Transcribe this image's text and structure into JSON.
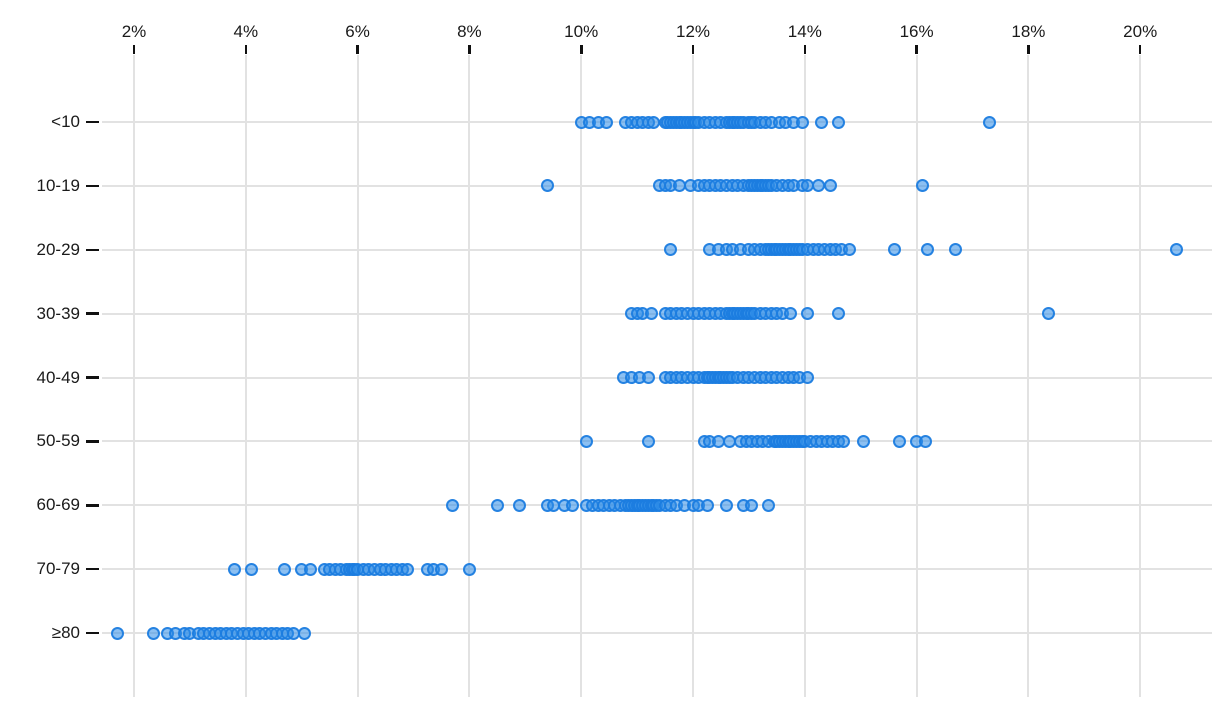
{
  "chart_data": {
    "type": "scatter",
    "variant": "horizontal-strip-dot-plot",
    "title": "",
    "legend": "none",
    "x_axis": {
      "position": "top",
      "unit": "%",
      "min": 2,
      "max": 20,
      "tick_step": 2,
      "tick_values": [
        2,
        4,
        6,
        8,
        10,
        12,
        14,
        16,
        18,
        20
      ],
      "tick_labels": [
        "2%",
        "4%",
        "6%",
        "8%",
        "10%",
        "12%",
        "14%",
        "16%",
        "18%",
        "20%"
      ],
      "grid": true
    },
    "y_axis": {
      "categories": [
        "<10",
        "10-19",
        "20-29",
        "30-39",
        "40-49",
        "50-59",
        "60-69",
        "70-79",
        "≥80"
      ],
      "grid": true
    },
    "groups": [
      {
        "label": "<10",
        "values": [
          10.0,
          10.15,
          10.3,
          10.45,
          10.8,
          10.9,
          11.0,
          11.1,
          11.2,
          11.3,
          11.5,
          11.55,
          11.6,
          11.65,
          11.7,
          11.75,
          11.8,
          11.85,
          11.9,
          11.95,
          12.0,
          12.05,
          12.1,
          12.2,
          12.3,
          12.4,
          12.5,
          12.6,
          12.65,
          12.7,
          12.75,
          12.8,
          12.85,
          12.9,
          13.0,
          13.05,
          13.1,
          13.2,
          13.3,
          13.4,
          13.55,
          13.65,
          13.8,
          13.95,
          14.3,
          14.6,
          17.3
        ]
      },
      {
        "label": "10-19",
        "values": [
          9.4,
          11.4,
          11.5,
          11.6,
          11.75,
          11.95,
          12.1,
          12.2,
          12.3,
          12.4,
          12.5,
          12.6,
          12.7,
          12.8,
          12.9,
          13.0,
          13.05,
          13.1,
          13.15,
          13.2,
          13.25,
          13.3,
          13.35,
          13.4,
          13.5,
          13.6,
          13.7,
          13.8,
          13.95,
          14.05,
          14.25,
          14.45,
          16.1
        ]
      },
      {
        "label": "20-29",
        "values": [
          11.6,
          12.3,
          12.45,
          12.6,
          12.7,
          12.85,
          13.0,
          13.1,
          13.2,
          13.3,
          13.35,
          13.4,
          13.45,
          13.5,
          13.55,
          13.6,
          13.65,
          13.7,
          13.75,
          13.8,
          13.85,
          13.9,
          13.95,
          14.05,
          14.15,
          14.25,
          14.35,
          14.45,
          14.55,
          14.65,
          14.8,
          15.6,
          16.2,
          16.7,
          20.65
        ]
      },
      {
        "label": "30-39",
        "values": [
          10.9,
          11.0,
          11.1,
          11.25,
          11.5,
          11.6,
          11.7,
          11.8,
          11.9,
          12.0,
          12.1,
          12.2,
          12.3,
          12.4,
          12.5,
          12.6,
          12.65,
          12.7,
          12.75,
          12.8,
          12.85,
          12.9,
          12.95,
          13.0,
          13.05,
          13.1,
          13.2,
          13.3,
          13.4,
          13.5,
          13.6,
          13.75,
          14.05,
          14.6,
          18.35
        ]
      },
      {
        "label": "40-49",
        "values": [
          10.75,
          10.9,
          11.05,
          11.2,
          11.5,
          11.6,
          11.7,
          11.8,
          11.9,
          12.0,
          12.1,
          12.2,
          12.25,
          12.3,
          12.35,
          12.4,
          12.45,
          12.5,
          12.55,
          12.6,
          12.65,
          12.7,
          12.8,
          12.9,
          13.0,
          13.1,
          13.2,
          13.3,
          13.4,
          13.5,
          13.6,
          13.7,
          13.8,
          13.9,
          14.05
        ]
      },
      {
        "label": "50-59",
        "values": [
          10.1,
          11.2,
          12.2,
          12.3,
          12.45,
          12.65,
          12.85,
          12.95,
          13.05,
          13.15,
          13.25,
          13.35,
          13.45,
          13.5,
          13.55,
          13.6,
          13.65,
          13.7,
          13.75,
          13.8,
          13.85,
          13.9,
          13.95,
          14.0,
          14.1,
          14.2,
          14.3,
          14.4,
          14.5,
          14.6,
          14.7,
          15.05,
          15.7,
          16.0,
          16.15
        ]
      },
      {
        "label": "60-69",
        "values": [
          7.7,
          8.5,
          8.9,
          9.4,
          9.5,
          9.7,
          9.85,
          10.1,
          10.2,
          10.3,
          10.4,
          10.5,
          10.6,
          10.7,
          10.8,
          10.85,
          10.9,
          10.95,
          11.0,
          11.05,
          11.1,
          11.15,
          11.2,
          11.25,
          11.3,
          11.35,
          11.4,
          11.5,
          11.6,
          11.7,
          11.85,
          12.0,
          12.1,
          12.25,
          12.6,
          12.9,
          13.05,
          13.35
        ]
      },
      {
        "label": "70-79",
        "values": [
          3.8,
          4.1,
          4.7,
          5.0,
          5.15,
          5.4,
          5.5,
          5.6,
          5.7,
          5.8,
          5.85,
          5.9,
          5.95,
          6.0,
          6.1,
          6.2,
          6.3,
          6.4,
          6.5,
          6.6,
          6.7,
          6.8,
          6.9,
          7.25,
          7.35,
          7.5,
          8.0
        ]
      },
      {
        "label": "≥80",
        "values": [
          1.7,
          2.35,
          2.6,
          2.75,
          2.9,
          3.0,
          3.15,
          3.25,
          3.35,
          3.45,
          3.55,
          3.65,
          3.75,
          3.85,
          3.95,
          4.05,
          4.15,
          4.25,
          4.35,
          4.45,
          4.55,
          4.65,
          4.75,
          4.85,
          5.05
        ]
      }
    ]
  },
  "colors": {
    "point": "#2E8CE8",
    "point_stroke": "#1B7CE0",
    "grid": "#E2E2E2",
    "tick": "#111111",
    "text": "#1A1A1A",
    "background": "#FFFFFF"
  }
}
